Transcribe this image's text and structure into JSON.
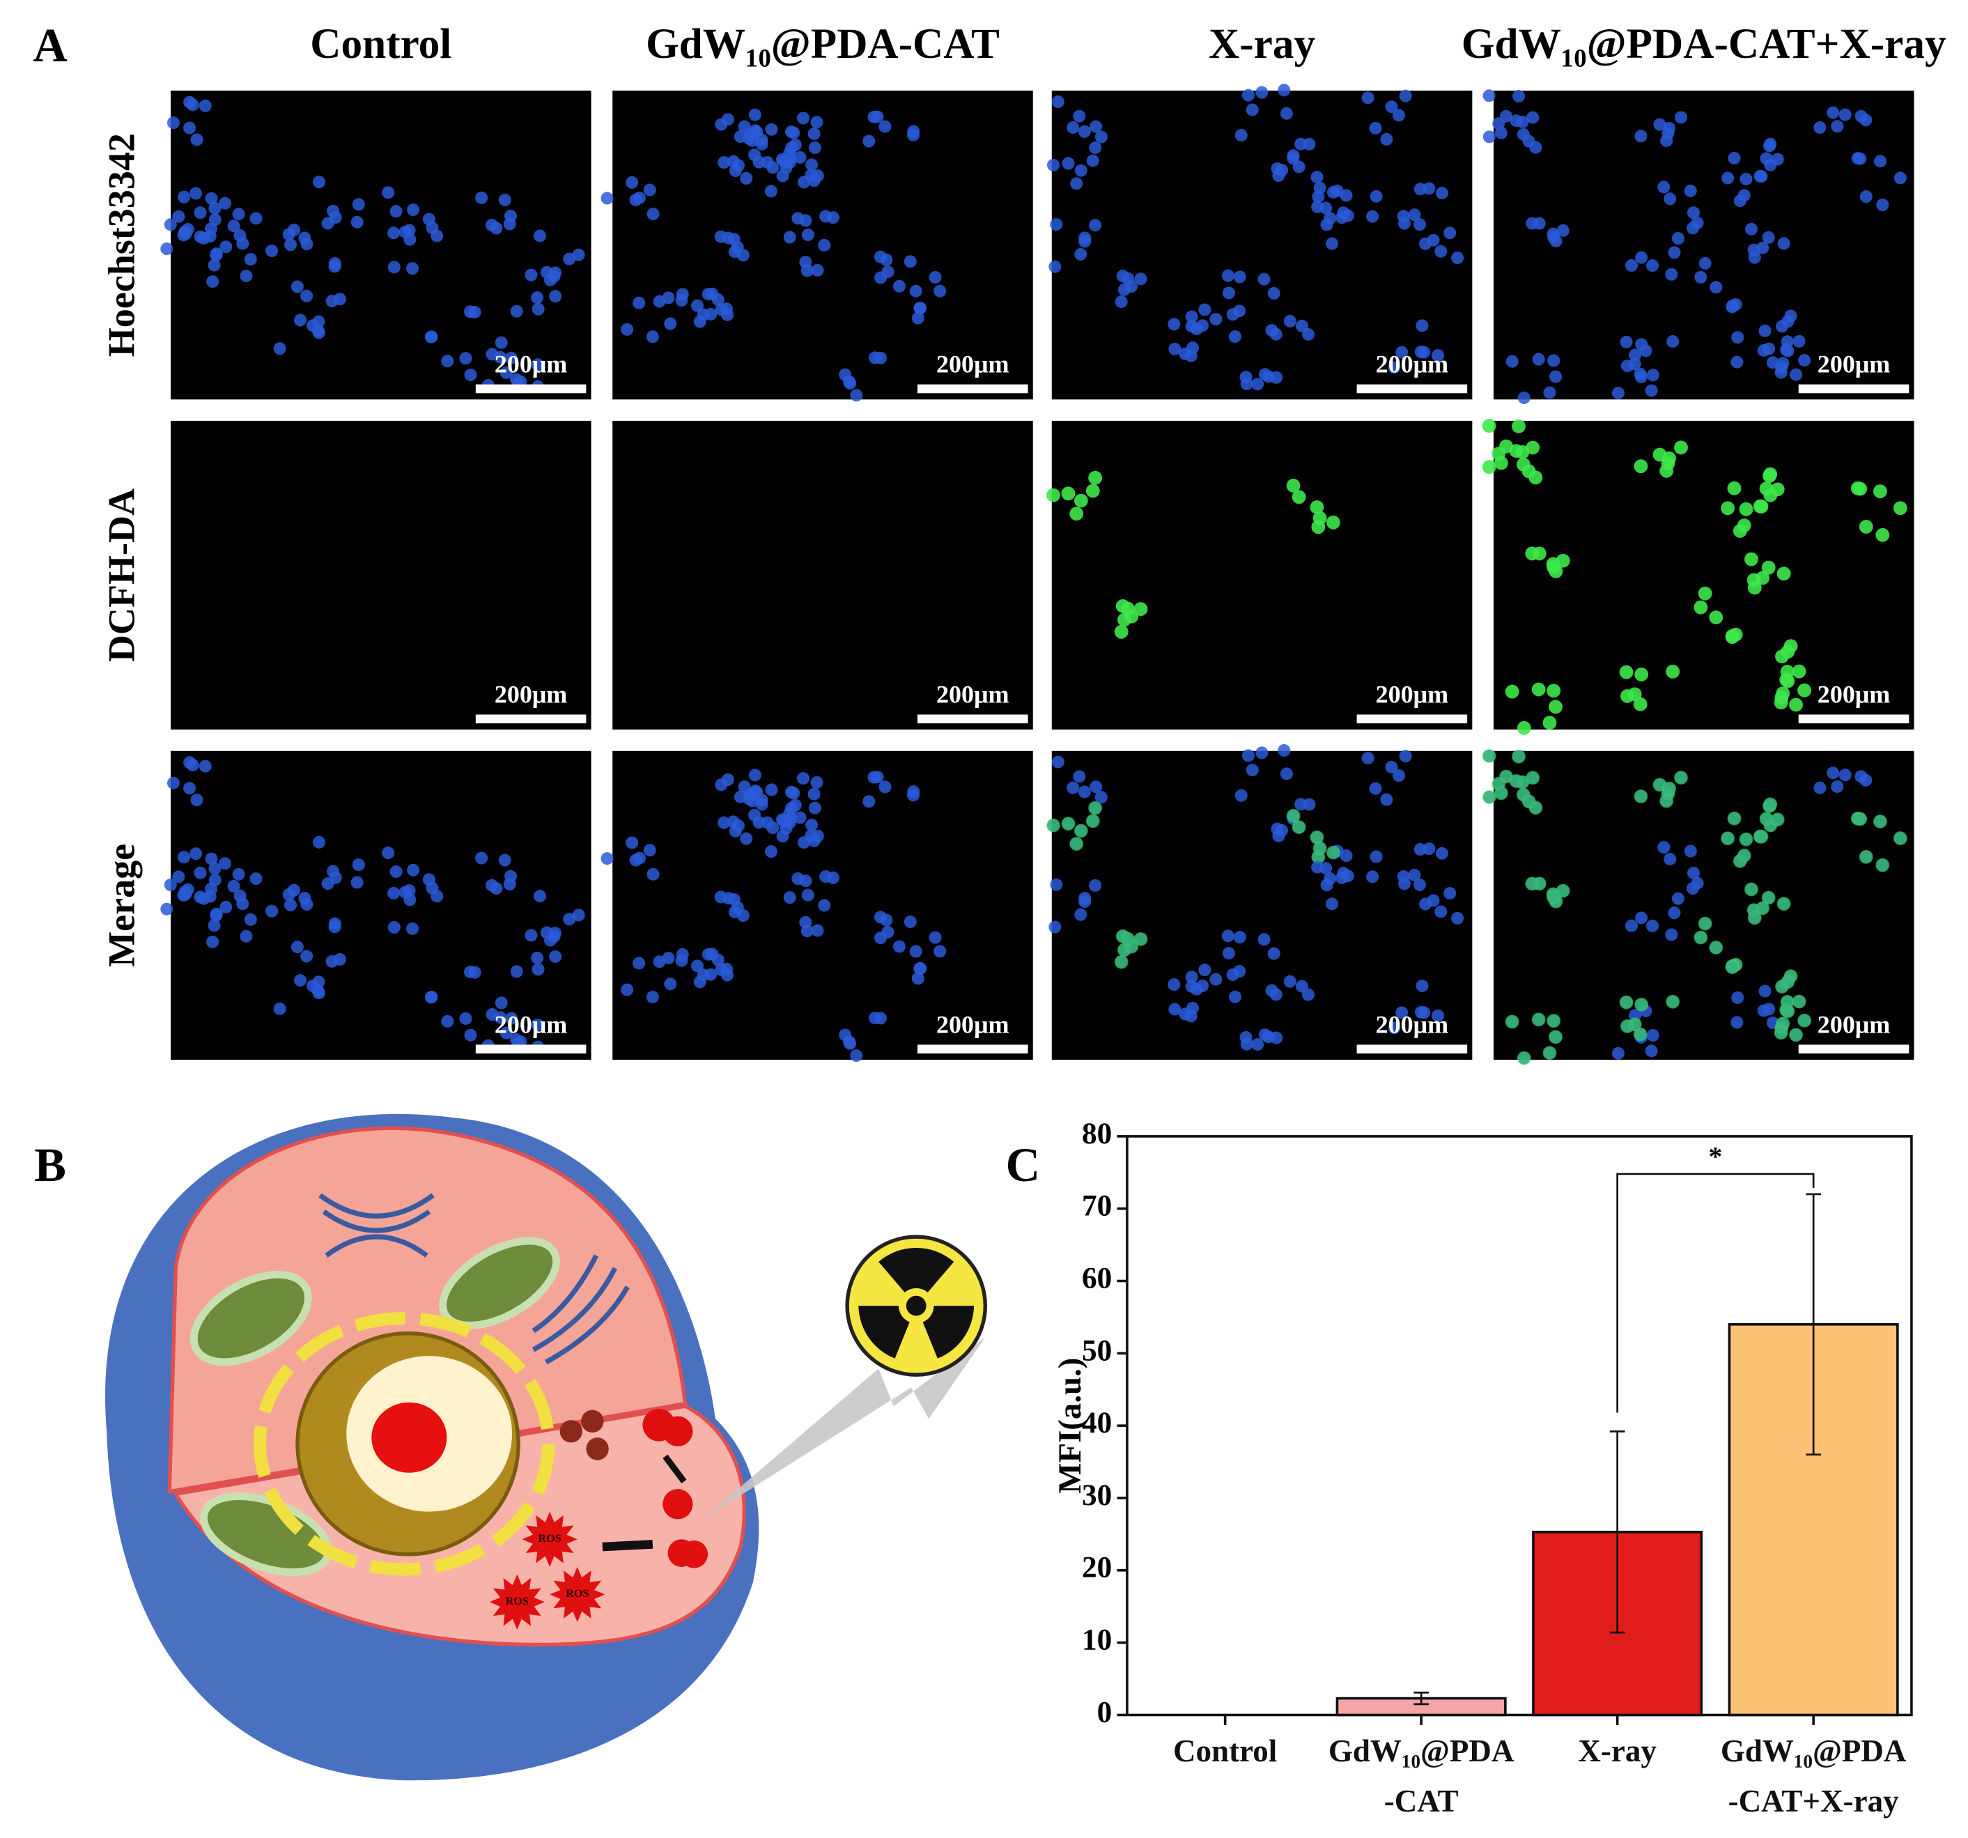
{
  "panel_labels": [
    "A",
    "B",
    "C"
  ],
  "panel_a": {
    "columns": [
      "Control",
      "GdW₁₀@PDA-CAT",
      "X-ray",
      "GdW₁₀@PDA-CAT+X-ray"
    ],
    "rows": [
      "Hoechst33342",
      "DCFH-DA",
      "Merage"
    ],
    "scale_bar": "200μm"
  },
  "panel_b": {
    "ros_labels": [
      "ROS",
      "ROS",
      "ROS"
    ]
  },
  "chart_data": {
    "type": "bar",
    "ylabel": "MFI(a.u.)",
    "categories": [
      "Control",
      "GdW₁₀@PDA\n-CAT",
      "X-ray",
      "GdW₁₀@PDA\n-CAT+X-ray"
    ],
    "values": [
      0,
      2.3,
      25.3,
      54
    ],
    "errors": [
      0,
      0.8,
      13.9,
      18
    ],
    "colors": [
      "#ffffff",
      "#f4a6a6",
      "#e01c1c",
      "#fdc273"
    ],
    "ylim": [
      0,
      80
    ],
    "yticks": [
      0,
      10,
      20,
      30,
      40,
      50,
      60,
      70,
      80
    ],
    "significance": [
      {
        "categories": [
          2,
          3
        ],
        "label": "*"
      }
    ]
  }
}
